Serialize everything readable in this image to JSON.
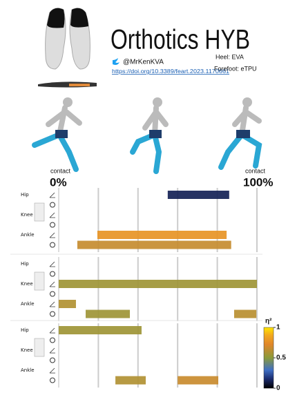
{
  "title": "Orthotics HYB",
  "handle": "@MrKenKVA",
  "doi": "https://doi.org/10.3389/feart.2023.1170661",
  "heel": "Heel:  EVA",
  "forefoot": "Forefoot:  eTPU",
  "start_label": {
    "top": "contact",
    "bottom": "0%"
  },
  "end_label": {
    "top": "contact",
    "bottom": "100%"
  },
  "chart_data": {
    "type": "timeline",
    "xlim": [
      0,
      100
    ],
    "gridlines": [
      20,
      40,
      60,
      80
    ],
    "panels": [
      {
        "rows": [
          {
            "label": "Hip",
            "angle": [
              {
                "start": 55,
                "end": 86,
                "eta2": 0.12
              }
            ],
            "moment": []
          },
          {
            "label": "Knee",
            "angle": [],
            "moment": []
          },
          {
            "label": "Ankle",
            "angle": [
              {
                "start": 19.5,
                "end": 84.7,
                "eta2": 0.78
              }
            ],
            "moment": [
              {
                "start": 9.4,
                "end": 87,
                "eta2": 0.65
              }
            ]
          }
        ]
      },
      {
        "rows": [
          {
            "label": "Hip",
            "angle": [],
            "moment": []
          },
          {
            "label": "Knee",
            "angle": [
              {
                "start": 0,
                "end": 100,
                "eta2": 0.55
              }
            ],
            "moment": []
          },
          {
            "label": "Ankle",
            "angle": [
              {
                "start": 0,
                "end": 8.7,
                "eta2": 0.6
              }
            ],
            "moment": [
              {
                "start": 13.6,
                "end": 35.9,
                "eta2": 0.55
              },
              {
                "start": 88.5,
                "end": 99.7,
                "eta2": 0.62
              }
            ]
          }
        ]
      },
      {
        "rows": [
          {
            "label": "Hip",
            "angle": [
              {
                "start": 0,
                "end": 41.8,
                "eta2": 0.55
              }
            ],
            "moment": []
          },
          {
            "label": "Knee",
            "angle": [],
            "moment": []
          },
          {
            "label": "Ankle",
            "angle": [],
            "moment": [
              {
                "start": 28.6,
                "end": 43.9,
                "eta2": 0.6
              },
              {
                "start": 60,
                "end": 80.5,
                "eta2": 0.66
              }
            ]
          }
        ]
      }
    ],
    "colorbar": {
      "label": "η²",
      "lim": [
        0,
        1
      ],
      "ticks": [
        0,
        0.5,
        1
      ]
    }
  }
}
